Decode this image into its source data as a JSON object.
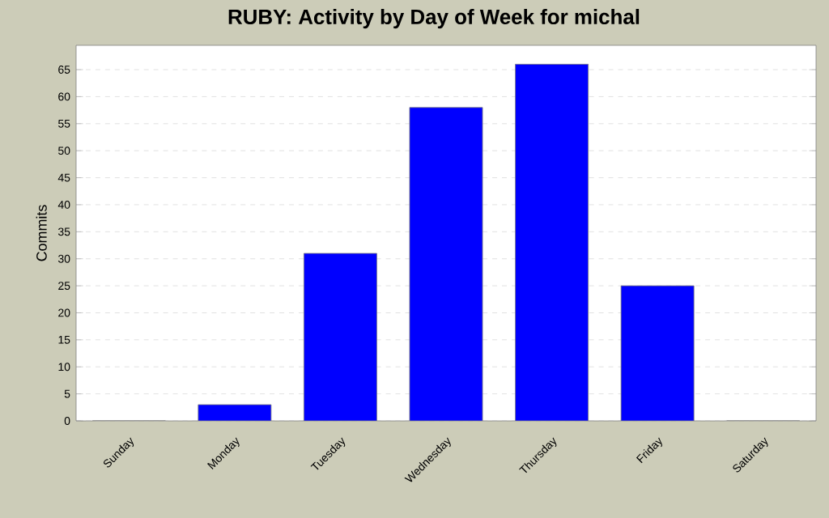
{
  "chart_data": {
    "type": "bar",
    "title": "RUBY: Activity by Day of Week for michal",
    "ylabel": "Commits",
    "categories": [
      "Sunday",
      "Monday",
      "Tuesday",
      "Wednesday",
      "Thursday",
      "Friday",
      "Saturday"
    ],
    "values": [
      0,
      3,
      31,
      58,
      66,
      25,
      0
    ],
    "color": "#0000ff",
    "ylim": [
      0,
      69.5
    ],
    "yticks": [
      0,
      5,
      10,
      15,
      20,
      25,
      30,
      35,
      40,
      45,
      50,
      55,
      60,
      65
    ],
    "grid": "y"
  }
}
